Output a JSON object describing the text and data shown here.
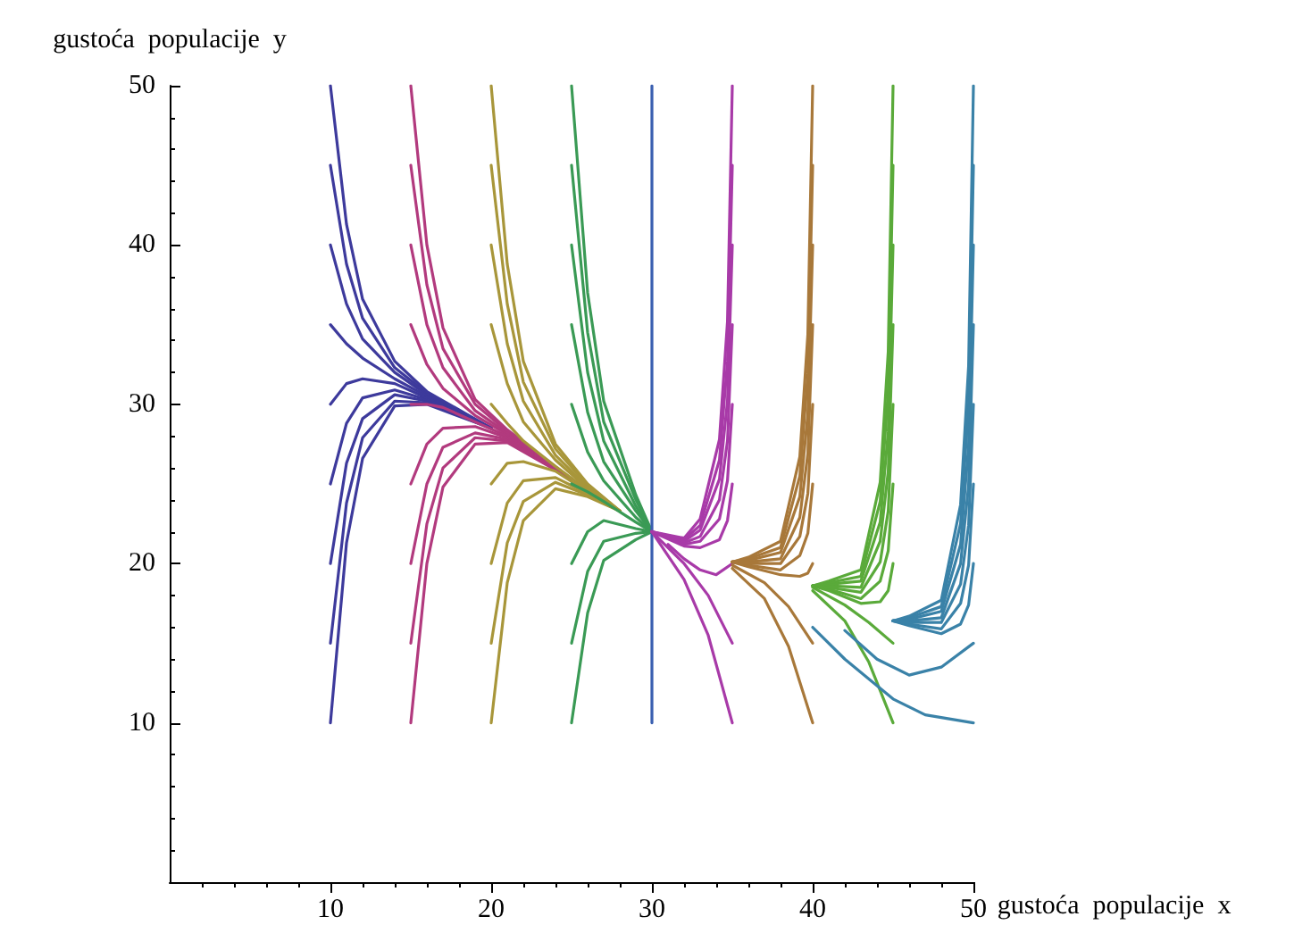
{
  "chart_data": {
    "type": "line",
    "xlabel": "gustoća  populacije  x",
    "ylabel": "gustoća  populacije  y",
    "xlim": [
      0,
      50
    ],
    "ylim": [
      0,
      50
    ],
    "xticks": [
      10,
      20,
      30,
      40,
      50
    ],
    "yticks": [
      10,
      20,
      30,
      40,
      50
    ],
    "grid": false,
    "marker": "none",
    "line_style": "solid",
    "series": [
      {
        "color": "#3d3a9c",
        "x": [
          10,
          11,
          12,
          14,
          16,
          20
        ],
        "values": [
          10,
          21.3,
          26.6,
          29.9,
          30.0,
          28.5
        ]
      },
      {
        "color": "#3d3a9c",
        "x": [
          10,
          11,
          12,
          14,
          16,
          20
        ],
        "values": [
          15,
          23.8,
          27.9,
          30.2,
          30.1,
          28.5
        ]
      },
      {
        "color": "#3d3a9c",
        "x": [
          10,
          11,
          12,
          14,
          16,
          20
        ],
        "values": [
          20,
          26.3,
          29.1,
          30.6,
          30.2,
          28.5
        ]
      },
      {
        "color": "#3d3a9c",
        "x": [
          10,
          11,
          12,
          14,
          16,
          20
        ],
        "values": [
          25,
          28.8,
          30.4,
          30.9,
          30.3,
          28.5
        ]
      },
      {
        "color": "#3d3a9c",
        "x": [
          10,
          11,
          12,
          14,
          16,
          20
        ],
        "values": [
          30,
          31.3,
          31.6,
          31.3,
          30.4,
          28.5
        ]
      },
      {
        "color": "#3d3a9c",
        "x": [
          10,
          11,
          12,
          14,
          16,
          20
        ],
        "values": [
          35,
          33.8,
          32.9,
          31.6,
          30.5,
          28.5
        ]
      },
      {
        "color": "#3d3a9c",
        "x": [
          10,
          11,
          12,
          14,
          16,
          20
        ],
        "values": [
          40,
          36.3,
          34.1,
          32.0,
          30.6,
          28.5
        ]
      },
      {
        "color": "#3d3a9c",
        "x": [
          10,
          11,
          12,
          14,
          16,
          20
        ],
        "values": [
          45,
          38.8,
          35.4,
          32.3,
          30.7,
          28.5
        ]
      },
      {
        "color": "#3d3a9c",
        "x": [
          10,
          11,
          12,
          14,
          16,
          20
        ],
        "values": [
          50,
          41.3,
          36.6,
          32.7,
          30.8,
          28.5
        ]
      },
      {
        "color": "#b23a7e",
        "x": [
          15,
          16,
          17,
          19,
          21,
          25
        ],
        "values": [
          10,
          20.0,
          24.8,
          27.5,
          27.6,
          25.3
        ]
      },
      {
        "color": "#b23a7e",
        "x": [
          15,
          16,
          17,
          19,
          21,
          25
        ],
        "values": [
          15,
          22.5,
          26.0,
          27.9,
          27.7,
          25.3
        ]
      },
      {
        "color": "#b23a7e",
        "x": [
          15,
          16,
          17,
          19,
          21,
          25
        ],
        "values": [
          20,
          25.0,
          27.3,
          28.2,
          27.8,
          25.3
        ]
      },
      {
        "color": "#b23a7e",
        "x": [
          15,
          16,
          17,
          19,
          21,
          25
        ],
        "values": [
          25,
          27.5,
          28.5,
          28.6,
          27.9,
          25.3
        ]
      },
      {
        "color": "#b23a7e",
        "x": [
          15,
          16,
          17,
          19,
          21,
          25
        ],
        "values": [
          30,
          30.0,
          29.8,
          28.9,
          28.0,
          25.3
        ]
      },
      {
        "color": "#b23a7e",
        "x": [
          15,
          16,
          17,
          19,
          21,
          25
        ],
        "values": [
          35,
          32.5,
          31.0,
          29.3,
          28.1,
          25.3
        ]
      },
      {
        "color": "#b23a7e",
        "x": [
          15,
          16,
          17,
          19,
          21,
          25
        ],
        "values": [
          40,
          35.0,
          32.3,
          29.6,
          28.2,
          25.3
        ]
      },
      {
        "color": "#b23a7e",
        "x": [
          15,
          16,
          17,
          19,
          21,
          25
        ],
        "values": [
          45,
          37.5,
          33.5,
          30.0,
          28.3,
          25.3
        ]
      },
      {
        "color": "#b23a7e",
        "x": [
          15,
          16,
          17,
          19,
          21,
          25
        ],
        "values": [
          50,
          40.0,
          34.8,
          30.3,
          28.4,
          25.3
        ]
      },
      {
        "color": "#a8963a",
        "x": [
          20,
          21,
          22,
          24,
          26,
          28
        ],
        "values": [
          10,
          18.8,
          22.7,
          24.7,
          24.2,
          23.3
        ]
      },
      {
        "color": "#a8963a",
        "x": [
          20,
          21,
          22,
          24,
          26,
          28
        ],
        "values": [
          15,
          21.3,
          23.9,
          25.1,
          24.3,
          23.3
        ]
      },
      {
        "color": "#a8963a",
        "x": [
          20,
          21,
          22,
          24,
          26,
          28
        ],
        "values": [
          20,
          23.8,
          25.2,
          25.4,
          24.4,
          23.3
        ]
      },
      {
        "color": "#a8963a",
        "x": [
          20,
          21,
          22,
          24,
          26,
          28
        ],
        "values": [
          25,
          26.3,
          26.4,
          25.8,
          24.5,
          23.3
        ]
      },
      {
        "color": "#a8963a",
        "x": [
          20,
          21,
          22,
          24,
          26,
          28
        ],
        "values": [
          30,
          28.8,
          27.7,
          26.1,
          24.6,
          23.3
        ]
      },
      {
        "color": "#a8963a",
        "x": [
          20,
          21,
          22,
          24,
          26,
          28
        ],
        "values": [
          35,
          31.3,
          28.9,
          26.5,
          24.7,
          23.3
        ]
      },
      {
        "color": "#a8963a",
        "x": [
          20,
          21,
          22,
          24,
          26,
          28
        ],
        "values": [
          40,
          33.8,
          30.2,
          26.8,
          24.8,
          23.3
        ]
      },
      {
        "color": "#a8963a",
        "x": [
          20,
          21,
          22,
          24,
          26,
          28
        ],
        "values": [
          45,
          36.3,
          31.4,
          27.2,
          24.9,
          23.3
        ]
      },
      {
        "color": "#a8963a",
        "x": [
          20,
          21,
          22,
          24,
          26,
          28
        ],
        "values": [
          50,
          38.8,
          32.7,
          27.5,
          25.0,
          23.3
        ]
      },
      {
        "color": "#3a9a55",
        "x": [
          25,
          26,
          27,
          29,
          30
        ],
        "values": [
          10,
          16.9,
          20.2,
          21.5,
          22
        ]
      },
      {
        "color": "#3a9a55",
        "x": [
          25,
          26,
          27,
          29,
          30
        ],
        "values": [
          15,
          19.5,
          21.4,
          21.9,
          22
        ]
      },
      {
        "color": "#3a9a55",
        "x": [
          25,
          26,
          27,
          29,
          30
        ],
        "values": [
          20,
          22.0,
          22.7,
          22.2,
          22
        ]
      },
      {
        "color": "#3a9a55",
        "x": [
          25,
          26,
          27,
          29,
          30
        ],
        "values": [
          25,
          24.5,
          23.9,
          22.6,
          22
        ]
      },
      {
        "color": "#3a9a55",
        "x": [
          25,
          26,
          27,
          29,
          30
        ],
        "values": [
          30,
          27.0,
          25.2,
          22.9,
          22
        ]
      },
      {
        "color": "#3a9a55",
        "x": [
          25,
          26,
          27,
          29,
          30
        ],
        "values": [
          35,
          29.5,
          26.4,
          23.3,
          22
        ]
      },
      {
        "color": "#3a9a55",
        "x": [
          25,
          26,
          27,
          29,
          30
        ],
        "values": [
          40,
          32.0,
          27.7,
          23.6,
          22
        ]
      },
      {
        "color": "#3a9a55",
        "x": [
          25,
          26,
          27,
          29,
          30
        ],
        "values": [
          45,
          34.5,
          28.9,
          24.0,
          22
        ]
      },
      {
        "color": "#3a9a55",
        "x": [
          25,
          26,
          27,
          29,
          30
        ],
        "values": [
          50,
          37.0,
          30.2,
          24.3,
          22
        ]
      },
      {
        "color": "#3a5fb0",
        "x": [
          30,
          30
        ],
        "values": [
          10,
          50
        ]
      },
      {
        "color": "#a83aa8",
        "x": [
          35,
          33.5,
          32,
          30
        ],
        "values": [
          10,
          15.5,
          19.0,
          22
        ]
      },
      {
        "color": "#a83aa8",
        "x": [
          35,
          33.5,
          32,
          30
        ],
        "values": [
          15,
          18.0,
          20.0,
          22
        ]
      },
      {
        "color": "#a83aa8",
        "x": [
          35,
          34,
          33,
          32,
          31
        ],
        "values": [
          20,
          19.3,
          19.6,
          20.3,
          21.2
        ]
      },
      {
        "color": "#a83aa8",
        "x": [
          35,
          34.7,
          34.2,
          33,
          32,
          30
        ],
        "values": [
          25,
          22.7,
          21.5,
          21.0,
          21.1,
          22
        ]
      },
      {
        "color": "#a83aa8",
        "x": [
          35,
          34.7,
          34.2,
          33,
          32,
          30
        ],
        "values": [
          30,
          25.2,
          22.8,
          21.4,
          21.2,
          22
        ]
      },
      {
        "color": "#a83aa8",
        "x": [
          35,
          34.7,
          34.2,
          33,
          32,
          30
        ],
        "values": [
          35,
          27.7,
          24.0,
          21.7,
          21.3,
          22
        ]
      },
      {
        "color": "#a83aa8",
        "x": [
          35,
          34.7,
          34.2,
          33,
          32,
          30
        ],
        "values": [
          40,
          30.2,
          25.3,
          22.1,
          21.4,
          22
        ]
      },
      {
        "color": "#a83aa8",
        "x": [
          35,
          34.7,
          34.2,
          33,
          32,
          30
        ],
        "values": [
          45,
          32.7,
          26.5,
          22.4,
          21.5,
          22
        ]
      },
      {
        "color": "#a83aa8",
        "x": [
          35,
          34.7,
          34.2,
          33,
          32,
          30
        ],
        "values": [
          50,
          35.2,
          27.8,
          22.8,
          21.6,
          22
        ]
      },
      {
        "color": "#a8783a",
        "x": [
          40,
          38.5,
          37,
          35
        ],
        "values": [
          10,
          14.8,
          17.8,
          19.7
        ]
      },
      {
        "color": "#a8783a",
        "x": [
          40,
          38.5,
          37,
          35
        ],
        "values": [
          15,
          17.3,
          18.8,
          19.9
        ]
      },
      {
        "color": "#a8783a",
        "x": [
          40,
          39.7,
          39.2,
          38,
          36,
          35
        ],
        "values": [
          20,
          19.4,
          19.2,
          19.3,
          19.8,
          20.1
        ]
      },
      {
        "color": "#a8783a",
        "x": [
          40,
          39.7,
          39.2,
          38,
          36,
          35
        ],
        "values": [
          25,
          21.9,
          20.5,
          19.6,
          19.9,
          20.1
        ]
      },
      {
        "color": "#a8783a",
        "x": [
          40,
          39.7,
          39.2,
          38,
          36,
          35
        ],
        "values": [
          30,
          24.4,
          21.7,
          20.0,
          20.0,
          20.1
        ]
      },
      {
        "color": "#a8783a",
        "x": [
          40,
          39.7,
          39.2,
          38,
          36,
          35
        ],
        "values": [
          35,
          26.9,
          22.9,
          20.3,
          20.1,
          20.1
        ]
      },
      {
        "color": "#a8783a",
        "x": [
          40,
          39.7,
          39.2,
          38,
          36,
          35
        ],
        "values": [
          40,
          29.4,
          24.2,
          20.7,
          20.2,
          20.1
        ]
      },
      {
        "color": "#a8783a",
        "x": [
          40,
          39.7,
          39.2,
          38,
          36,
          35
        ],
        "values": [
          45,
          31.9,
          25.5,
          21.0,
          20.3,
          20.1
        ]
      },
      {
        "color": "#a8783a",
        "x": [
          40,
          39.7,
          39.2,
          38,
          36,
          35
        ],
        "values": [
          50,
          34.4,
          26.7,
          21.4,
          20.4,
          20.1
        ]
      },
      {
        "color": "#5aaa3a",
        "x": [
          45,
          43.5,
          42,
          40
        ],
        "values": [
          10,
          13.8,
          16.4,
          18.3
        ]
      },
      {
        "color": "#5aaa3a",
        "x": [
          45,
          43.5,
          42,
          40
        ],
        "values": [
          15,
          16.3,
          17.4,
          18.5
        ]
      },
      {
        "color": "#5aaa3a",
        "x": [
          45,
          44.7,
          44.2,
          43,
          41,
          40
        ],
        "values": [
          20,
          18.3,
          17.6,
          17.5,
          18.3,
          18.6
        ]
      },
      {
        "color": "#5aaa3a",
        "x": [
          45,
          44.7,
          44.2,
          43,
          41,
          40
        ],
        "values": [
          25,
          20.8,
          18.9,
          17.8,
          18.4,
          18.6
        ]
      },
      {
        "color": "#5aaa3a",
        "x": [
          45,
          44.7,
          44.2,
          43,
          41,
          40
        ],
        "values": [
          30,
          23.3,
          20.1,
          18.2,
          18.5,
          18.6
        ]
      },
      {
        "color": "#5aaa3a",
        "x": [
          45,
          44.7,
          44.2,
          43,
          41,
          40
        ],
        "values": [
          35,
          25.8,
          21.4,
          18.5,
          18.6,
          18.6
        ]
      },
      {
        "color": "#5aaa3a",
        "x": [
          45,
          44.7,
          44.2,
          43,
          41,
          40
        ],
        "values": [
          40,
          28.3,
          22.6,
          18.9,
          18.7,
          18.6
        ]
      },
      {
        "color": "#5aaa3a",
        "x": [
          45,
          44.7,
          44.2,
          43,
          41,
          40
        ],
        "values": [
          45,
          30.8,
          23.9,
          19.2,
          18.8,
          18.6
        ]
      },
      {
        "color": "#5aaa3a",
        "x": [
          45,
          44.7,
          44.2,
          43,
          41,
          40
        ],
        "values": [
          50,
          33.3,
          25.1,
          19.6,
          18.9,
          18.6
        ]
      },
      {
        "color": "#3a82a8",
        "x": [
          50,
          47,
          45,
          42,
          40
        ],
        "values": [
          10,
          10.5,
          11.5,
          14,
          16
        ]
      },
      {
        "color": "#3a82a8",
        "x": [
          50,
          48,
          46,
          44,
          42
        ],
        "values": [
          15,
          13.5,
          13,
          14,
          15.8
        ]
      },
      {
        "color": "#3a82a8",
        "x": [
          50,
          49.7,
          49.2,
          48,
          46,
          45
        ],
        "values": [
          20,
          17.4,
          16.2,
          15.6,
          16.1,
          16.4
        ]
      },
      {
        "color": "#3a82a8",
        "x": [
          50,
          49.7,
          49.2,
          48,
          46,
          45
        ],
        "values": [
          25,
          19.9,
          17.5,
          15.9,
          16.2,
          16.4
        ]
      },
      {
        "color": "#3a82a8",
        "x": [
          50,
          49.7,
          49.2,
          48,
          46,
          45
        ],
        "values": [
          30,
          22.4,
          18.7,
          16.3,
          16.3,
          16.4
        ]
      },
      {
        "color": "#3a82a8",
        "x": [
          50,
          49.7,
          49.2,
          48,
          46,
          45
        ],
        "values": [
          35,
          24.9,
          20.0,
          16.6,
          16.4,
          16.4
        ]
      },
      {
        "color": "#3a82a8",
        "x": [
          50,
          49.7,
          49.2,
          48,
          46,
          45
        ],
        "values": [
          40,
          27.4,
          21.2,
          17.0,
          16.5,
          16.4
        ]
      },
      {
        "color": "#3a82a8",
        "x": [
          50,
          49.7,
          49.2,
          48,
          46,
          45
        ],
        "values": [
          45,
          29.9,
          22.5,
          17.3,
          16.6,
          16.4
        ]
      },
      {
        "color": "#3a82a8",
        "x": [
          50,
          49.7,
          49.2,
          48,
          46,
          45
        ],
        "values": [
          50,
          32.4,
          23.7,
          17.7,
          16.7,
          16.4
        ]
      }
    ]
  }
}
